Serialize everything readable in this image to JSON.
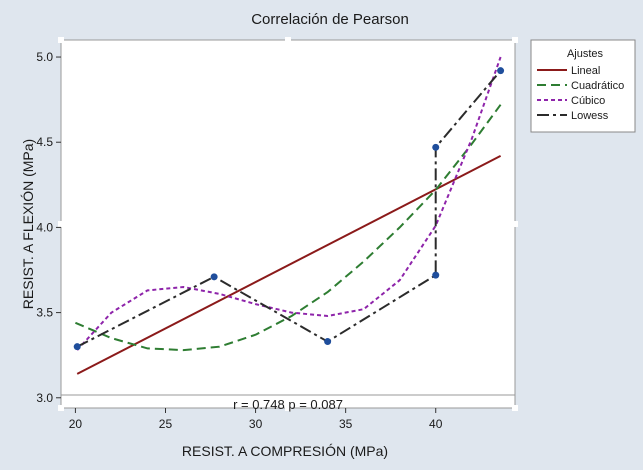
{
  "chart_data": {
    "type": "line",
    "title": "Correlación de Pearson",
    "xlabel": "RESIST. A COMPRESIÓN (MPa)",
    "ylabel": "RESIST. A FLEXIÓN (MPa)",
    "xlim": [
      19.2,
      44.4
    ],
    "ylim": [
      2.94,
      5.1
    ],
    "x_ticks": [
      20,
      25,
      30,
      35,
      40
    ],
    "y_ticks": [
      3.0,
      3.5,
      4.0,
      4.5,
      5.0
    ],
    "x_tick_labels": [
      "20",
      "25",
      "30",
      "35",
      "40"
    ],
    "y_tick_labels": [
      "3.0",
      "3.5",
      "4.0",
      "4.5",
      "5.0"
    ],
    "points": [
      {
        "x": 20.1,
        "y": 3.3
      },
      {
        "x": 27.7,
        "y": 3.71
      },
      {
        "x": 34.0,
        "y": 3.33
      },
      {
        "x": 40.0,
        "y": 3.72
      },
      {
        "x": 40.0,
        "y": 4.47
      },
      {
        "x": 43.6,
        "y": 4.92
      }
    ],
    "series": [
      {
        "name": "Lineal",
        "color": "#8b1a1a",
        "dash": "solid",
        "x": [
          20.1,
          43.6
        ],
        "y": [
          3.14,
          4.42
        ]
      },
      {
        "name": "Cuadrático",
        "color": "#2e7d32",
        "dash": "dashed",
        "x": [
          20.0,
          22.0,
          24.0,
          26.0,
          28.0,
          30.0,
          32.0,
          34.0,
          36.0,
          38.0,
          40.0,
          42.0,
          43.6
        ],
        "y": [
          3.44,
          3.35,
          3.29,
          3.28,
          3.3,
          3.37,
          3.48,
          3.62,
          3.8,
          4.0,
          4.22,
          4.49,
          4.72
        ]
      },
      {
        "name": "Cúbico",
        "color": "#8e24aa",
        "dash": "dotted",
        "x": [
          20.1,
          22.0,
          24.0,
          26.0,
          28.0,
          30.0,
          32.0,
          34.0,
          36.0,
          38.0,
          40.0,
          42.0,
          43.6
        ],
        "y": [
          3.28,
          3.5,
          3.63,
          3.65,
          3.61,
          3.55,
          3.5,
          3.48,
          3.52,
          3.69,
          4.01,
          4.52,
          5.0
        ]
      },
      {
        "name": "Lowess",
        "color": "#2b2b2b",
        "dash": "dashdot",
        "x": [
          20.1,
          27.7,
          34.0,
          40.0,
          40.0,
          43.6
        ],
        "y": [
          3.3,
          3.71,
          3.33,
          3.72,
          4.47,
          4.92
        ]
      }
    ],
    "legend": {
      "title": "Ajustes",
      "position": "top-right"
    },
    "stats": "r = 0.748  p = 0.087",
    "grid": false,
    "colors": {
      "background": "#dfe6ee",
      "plot": "#ffffff",
      "point": "#1f4e9c"
    }
  }
}
